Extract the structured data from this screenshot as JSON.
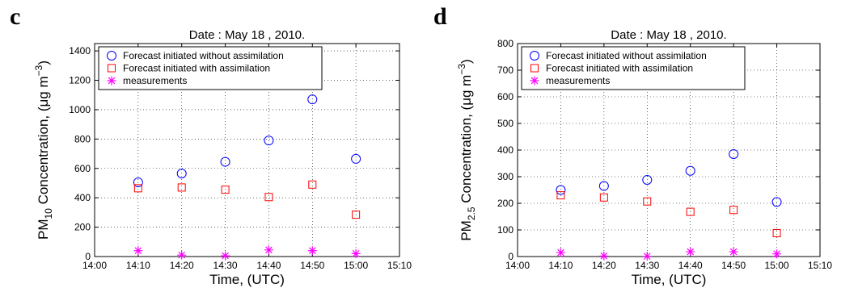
{
  "chart_data": [
    {
      "panel_label": "c",
      "type": "scatter",
      "title": "Date : May 18 , 2010.",
      "xlabel": "Time, (UTC)",
      "ylabel_parts": [
        "PM",
        "10",
        " Concentration, (μg m",
        "−3",
        ")"
      ],
      "x_ticks": [
        "14:00",
        "14:10",
        "14:20",
        "14:30",
        "14:40",
        "14:50",
        "15:00",
        "15:10"
      ],
      "xlim": [
        0,
        7
      ],
      "y_ticks": [
        0,
        200,
        400,
        600,
        800,
        1000,
        1200,
        1400
      ],
      "ylim": [
        0,
        1450
      ],
      "grid": true,
      "legend_position": "top",
      "series": [
        {
          "name": "Forecast initiated without assimilation",
          "marker": "circle",
          "color": "#0000ff",
          "x": [
            "14:10",
            "14:20",
            "14:30",
            "14:40",
            "14:50",
            "15:00"
          ],
          "values": [
            505,
            565,
            645,
            790,
            1070,
            665
          ]
        },
        {
          "name": "Forecast initiated with assimilation",
          "marker": "square",
          "color": "#ff0000",
          "x": [
            "14:10",
            "14:20",
            "14:30",
            "14:40",
            "14:50",
            "15:00"
          ],
          "values": [
            465,
            470,
            455,
            405,
            490,
            285
          ]
        },
        {
          "name": "measurements",
          "marker": "star",
          "color": "#ff00ff",
          "x": [
            "14:10",
            "14:20",
            "14:30",
            "14:40",
            "14:50",
            "15:00"
          ],
          "values": [
            40,
            10,
            5,
            45,
            40,
            20
          ]
        }
      ]
    },
    {
      "panel_label": "d",
      "type": "scatter",
      "title": "Date : May 18 , 2010.",
      "xlabel": "Time, (UTC)",
      "ylabel_parts": [
        "PM",
        "2.5",
        " Concentration, (μg m",
        "−3",
        ")"
      ],
      "x_ticks": [
        "14:00",
        "14:10",
        "14:20",
        "14:30",
        "14:40",
        "14:50",
        "15:00",
        "15:10"
      ],
      "xlim": [
        0,
        7
      ],
      "y_ticks": [
        0,
        100,
        200,
        300,
        400,
        500,
        600,
        700,
        800
      ],
      "ylim": [
        0,
        800
      ],
      "grid": true,
      "legend_position": "top",
      "series": [
        {
          "name": "Forecast initiated without assimilation",
          "marker": "circle",
          "color": "#0000ff",
          "x": [
            "14:10",
            "14:20",
            "14:30",
            "14:40",
            "14:50",
            "15:00"
          ],
          "values": [
            250,
            265,
            288,
            322,
            385,
            205
          ]
        },
        {
          "name": "Forecast initiated with assimilation",
          "marker": "square",
          "color": "#ff0000",
          "x": [
            "14:10",
            "14:20",
            "14:30",
            "14:40",
            "14:50",
            "15:00"
          ],
          "values": [
            230,
            222,
            207,
            168,
            175,
            88
          ]
        },
        {
          "name": "measurements",
          "marker": "star",
          "color": "#ff00ff",
          "x": [
            "14:10",
            "14:20",
            "14:30",
            "14:40",
            "14:50",
            "15:00"
          ],
          "values": [
            15,
            2,
            1,
            18,
            18,
            10
          ]
        }
      ]
    }
  ]
}
